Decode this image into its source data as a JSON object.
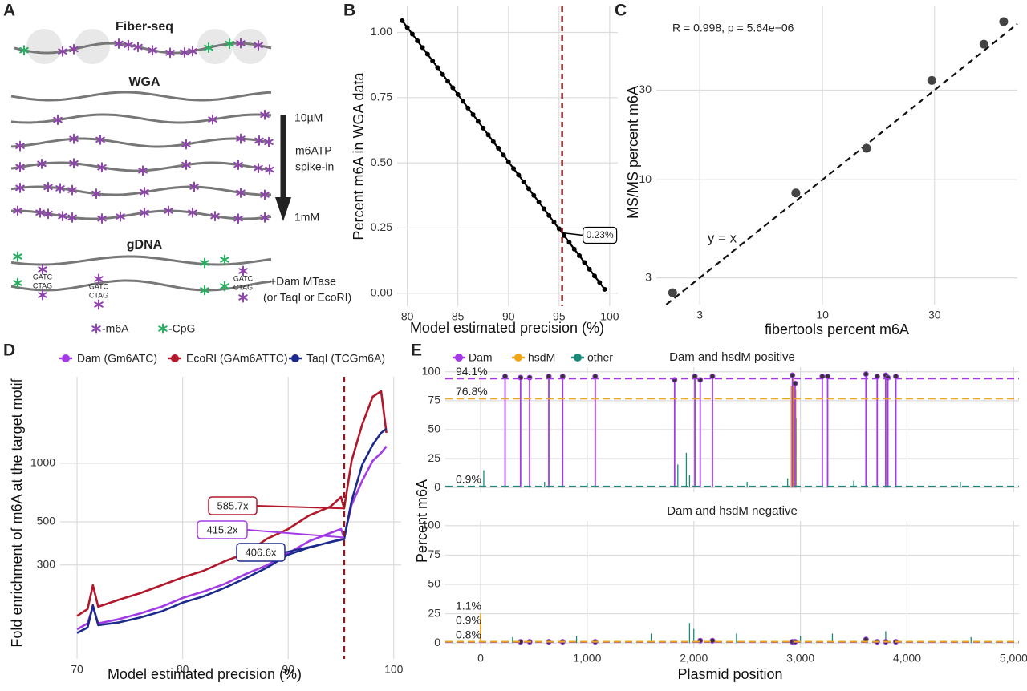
{
  "diagram": {
    "panel": "A",
    "fiber_seq": "Fiber-seq",
    "wga": "WGA",
    "conc_high": "10µM",
    "spike_in": [
      "m6ATP",
      "spike-in"
    ],
    "conc_low": "1mM",
    "gdna": "gDNA",
    "mtase": [
      "+Dam MTase",
      "(or TaqI or EcoRI)"
    ],
    "motif": [
      "GATC",
      "CTAG"
    ],
    "legend": [
      "-m6A",
      "-CpG"
    ]
  },
  "chart_data": [
    {
      "panel": "B",
      "type": "line",
      "markers": true,
      "color": "#000000",
      "x": [
        79.5,
        80,
        80.5,
        81,
        81.5,
        82,
        82.5,
        83,
        83.5,
        84,
        84.5,
        85,
        85.5,
        86,
        86.5,
        87,
        87.5,
        88,
        88.5,
        89,
        89.5,
        90,
        90.5,
        91,
        91.5,
        92,
        92.5,
        93,
        93.5,
        94,
        94.5,
        95,
        95.5,
        96,
        96.5,
        97,
        97.5,
        98,
        98.5,
        99,
        99.5
      ],
      "values": [
        1.045,
        1.019,
        0.994,
        0.968,
        0.942,
        0.917,
        0.891,
        0.865,
        0.839,
        0.813,
        0.788,
        0.762,
        0.736,
        0.71,
        0.685,
        0.659,
        0.633,
        0.607,
        0.581,
        0.556,
        0.53,
        0.504,
        0.478,
        0.453,
        0.427,
        0.401,
        0.375,
        0.35,
        0.324,
        0.298,
        0.272,
        0.247,
        0.221,
        0.195,
        0.169,
        0.144,
        0.118,
        0.092,
        0.066,
        0.041,
        0.015
      ],
      "xlim": [
        79,
        100.8
      ],
      "ylim": [
        -0.05,
        1.1
      ],
      "xticks": [
        80,
        85,
        90,
        95,
        100
      ],
      "yticks": [
        {
          "value": 0,
          "label": "0.00"
        },
        0.25,
        {
          "value": 0.5,
          "label": "0.50"
        },
        0.75,
        {
          "value": 1,
          "label": "1.00"
        }
      ],
      "xlabel": "Model estimated precision (%)",
      "ylabel": "Percent m6A in WGA data",
      "vline": 95.3,
      "vline_color": "#8b1a1a",
      "annotation": "0.23%",
      "grid": true
    },
    {
      "panel": "C",
      "type": "scatter",
      "color": "#444444",
      "xscale": "log",
      "yscale": "log",
      "x": [
        2.3,
        7.7,
        15.4,
        29.2,
        48.7,
        59.1
      ],
      "values": [
        2.5,
        8.5,
        14.7,
        33.8,
        52.7,
        69.5
      ],
      "xlim": [
        1.96,
        67.6
      ],
      "ylim": [
        2.16,
        83.8
      ],
      "xticks": [
        3,
        10,
        30
      ],
      "yticks": [
        3,
        10,
        30
      ],
      "xlabel": "fibertools percent m6A",
      "ylabel": "MS/MS percent m6A",
      "annotation": "R = 0.998, p = 5.64e−06",
      "reference_line": "y = x",
      "grid": true
    },
    {
      "panel": "D",
      "type": "line",
      "yscale": "log",
      "x": [
        70,
        71,
        71.5,
        72,
        74,
        76,
        78,
        80,
        82,
        84,
        86,
        88,
        90,
        92,
        94,
        95,
        95.3,
        96,
        97,
        98,
        98.8,
        99.3
      ],
      "series": [
        {
          "name": "Dam (Gm6ATC)",
          "color": "#a23be6",
          "annotation": "415.2x",
          "values": [
            140,
            150,
            183,
            150,
            158,
            169,
            183,
            203,
            219,
            240,
            270,
            299,
            345,
            398,
            438,
            459,
            415.2,
            611,
            811,
            1029,
            1130,
            1222
          ]
        },
        {
          "name": "EcoRI (GAm6ATTC)",
          "color": "#b2182b",
          "annotation": "585.7x",
          "values": [
            164,
            178,
            236,
            183,
            199,
            215,
            236,
            259,
            280,
            314,
            345,
            409,
            459,
            540,
            598,
            671,
            585.7,
            1029,
            1577,
            2198,
            2350,
            1434
          ]
        },
        {
          "name": "TaqI (TCGm6A)",
          "color": "#1c2a8c",
          "annotation": "406.6x",
          "values": [
            134,
            143,
            186,
            147,
            152,
            161,
            173,
            192,
            207,
            229,
            257,
            291,
            339,
            369,
            394,
            406,
            406.6,
            640,
            981,
            1245,
            1434,
            1503
          ]
        }
      ],
      "xlim": [
        68.4,
        100.7
      ],
      "ylim": [
        98.6,
        2786
      ],
      "xticks": [
        70,
        80,
        90,
        100
      ],
      "yticks": [
        300,
        500,
        1000
      ],
      "xlabel": "Model estimated precision (%)",
      "ylabel": "Fold enrichment of m6A at the target motif",
      "vline": 95.3,
      "vline_color": "#8b1a1a",
      "grid": true,
      "legend": "top"
    },
    {
      "panel": "E",
      "type": "spike",
      "xlim": [
        -331,
        5050
      ],
      "ylim": [
        -4,
        104
      ],
      "xticks": [
        0,
        {
          "value": 1000,
          "label": "1,000"
        },
        {
          "value": 2000,
          "label": "2,000"
        },
        {
          "value": 3000,
          "label": "3,000"
        },
        {
          "value": 4000,
          "label": "4,000"
        },
        {
          "value": 5000,
          "label": "5,000"
        }
      ],
      "yticks": [
        0,
        25,
        50,
        75,
        100
      ],
      "xlabel": "Plasmid position",
      "ylabel": "Percent m6A",
      "grid": true,
      "legend": "top",
      "facets": [
        {
          "title": "Dam and hsdM positive",
          "series": [
            {
              "name": "Dam",
              "color": "#a23be6",
              "mean": 94.1,
              "mean_label": "94.1%",
              "x": [
                230,
                375,
                460,
                640,
                770,
                1075,
                1820,
                2010,
                2060,
                2175,
                2925,
                2950,
                3205,
                3255,
                3615,
                3720,
                3800,
                3820,
                3895
              ],
              "values": [
                96,
                95,
                95,
                96,
                96,
                96,
                93,
                96,
                93,
                96,
                97,
                90,
                96,
                96,
                98,
                96,
                97,
                95,
                96
              ]
            },
            {
              "name": "hsdM",
              "color": "#f2a51a",
              "mean": 76.8,
              "mean_label": "76.8%",
              "x": [
                2915,
                2935,
                2955
              ],
              "values": [
                88,
                94,
                85
              ]
            },
            {
              "name": "other",
              "color": "#1b8a7a",
              "mean": 0.9,
              "mean_label": "0.9%",
              "x": [
                30,
                600,
                1000,
                1850,
                1930,
                1960,
                2500,
                2880,
                2960,
                3500,
                3800,
                4500
              ],
              "values": [
                15,
                5,
                4,
                20,
                30,
                11,
                5,
                8,
                60,
                6,
                30,
                5
              ]
            }
          ]
        },
        {
          "title": "Dam and hsdM negative",
          "series": [
            {
              "name": "Dam",
              "color": "#a23be6",
              "mean": 0.9,
              "mean_label": "0.9%",
              "x": [
                375,
                460,
                640,
                770,
                1075,
                2060,
                2175,
                2925,
                2950,
                3615,
                3720,
                3800,
                3895
              ],
              "values": [
                1,
                1,
                1,
                1,
                1,
                2,
                2,
                1,
                1,
                3,
                1,
                1,
                1
              ]
            },
            {
              "name": "hsdM",
              "color": "#f2a51a",
              "mean": 1.1,
              "mean_label": "1.1%",
              "x": [
                0
              ],
              "values": [
                25
              ]
            },
            {
              "name": "other",
              "color": "#1b8a7a",
              "mean": 0.8,
              "mean_label": "0.8%",
              "x": [
                300,
                900,
                1600,
                1960,
                2000,
                2400,
                3000,
                3300,
                3800,
                4600
              ],
              "values": [
                5,
                6,
                8,
                17,
                12,
                8,
                6,
                8,
                10,
                5
              ]
            }
          ]
        }
      ]
    }
  ]
}
